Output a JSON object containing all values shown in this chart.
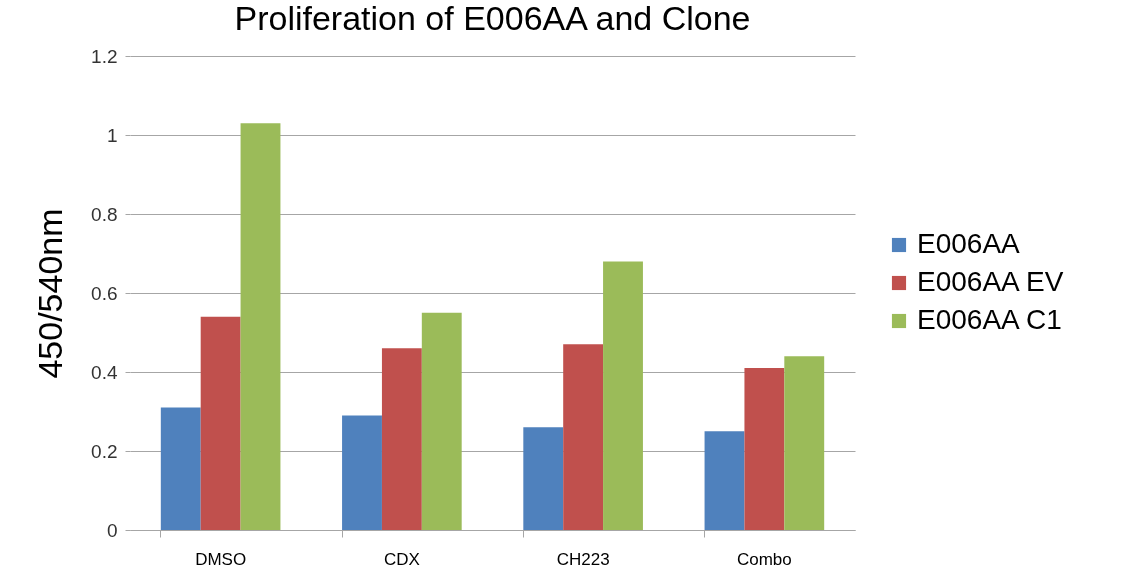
{
  "chart_data": {
    "type": "bar",
    "title": "Proliferation of E006AA and Clone",
    "ylabel": "450/540nm",
    "categories": [
      "DMSO",
      "CDX",
      "CH223",
      "Combo"
    ],
    "series": [
      {
        "name": "E006AA",
        "color": "#4f81bd",
        "values": [
          0.31,
          0.29,
          0.26,
          0.25
        ]
      },
      {
        "name": "E006AA EV",
        "color": "#c0504d",
        "values": [
          0.54,
          0.46,
          0.47,
          0.41
        ]
      },
      {
        "name": "E006AA C1",
        "color": "#9bbb59",
        "values": [
          1.03,
          0.55,
          0.68,
          0.44
        ]
      }
    ],
    "ylim": [
      0,
      1.2
    ],
    "yticks": [
      0,
      0.2,
      0.4,
      0.6,
      0.8,
      1,
      1.2
    ],
    "grid": "y",
    "legend": "right"
  }
}
